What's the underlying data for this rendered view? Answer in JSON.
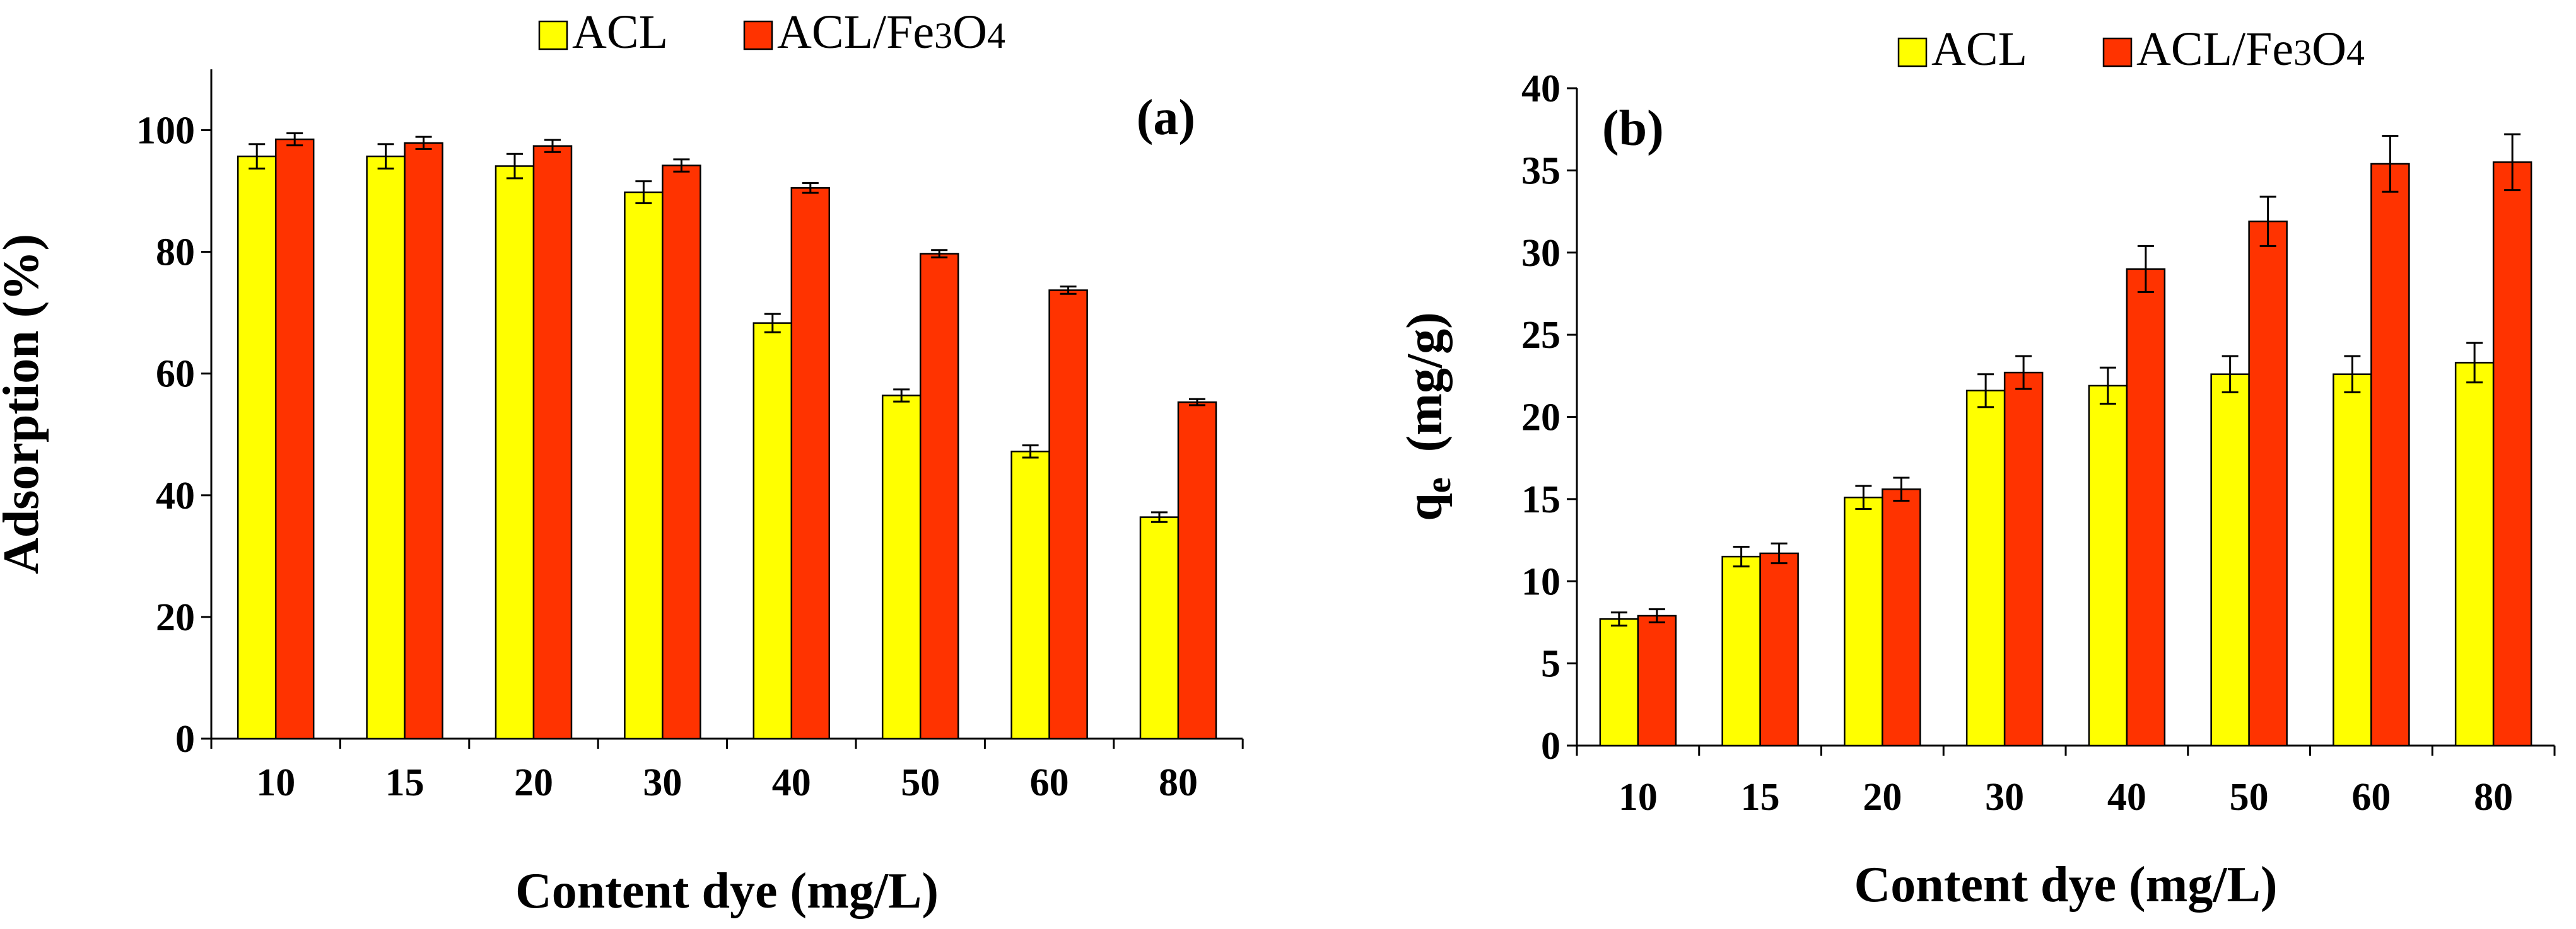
{
  "chart_data": [
    {
      "type": "bar",
      "panel_label": "(a)",
      "title": "",
      "xlabel": "Content dye (mg/L)",
      "ylabel": "Adsorption (%)",
      "ylim": [
        0,
        110
      ],
      "yticks": [
        0,
        20,
        40,
        60,
        80,
        100
      ],
      "grid": false,
      "legend_position": "top-center",
      "categories": [
        "10",
        "15",
        "20",
        "30",
        "40",
        "50",
        "60",
        "80"
      ],
      "series": [
        {
          "name": "ACL",
          "color": "#FFFF00",
          "values": [
            95.7,
            95.7,
            94.1,
            89.8,
            68.3,
            56.4,
            47.2,
            36.4
          ],
          "errors": [
            2.0,
            2.0,
            2.0,
            1.8,
            1.5,
            1.0,
            1.0,
            0.8
          ]
        },
        {
          "name": "ACL/Fe3O4",
          "color": "#FF3300",
          "values": [
            98.5,
            97.9,
            97.4,
            94.2,
            90.5,
            79.7,
            73.7,
            55.3
          ],
          "errors": [
            1.0,
            1.0,
            1.0,
            1.0,
            0.8,
            0.6,
            0.6,
            0.5
          ]
        }
      ]
    },
    {
      "type": "bar",
      "panel_label": "(b)",
      "title": "",
      "xlabel": "Content dye (mg/L)",
      "ylabel_main": "q",
      "ylabel_sub": "e",
      "ylabel_units": "(mg/g)",
      "ylim": [
        0,
        40
      ],
      "yticks": [
        0,
        5,
        10,
        15,
        20,
        25,
        30,
        35,
        40
      ],
      "grid": false,
      "legend_position": "top-center",
      "categories": [
        "10",
        "15",
        "20",
        "30",
        "40",
        "50",
        "60",
        "80"
      ],
      "series": [
        {
          "name": "ACL",
          "color": "#FFFF00",
          "values": [
            7.7,
            11.5,
            15.1,
            21.6,
            21.9,
            22.6,
            22.6,
            23.3
          ],
          "errors": [
            0.4,
            0.6,
            0.7,
            1.0,
            1.1,
            1.1,
            1.1,
            1.2
          ]
        },
        {
          "name": "ACL/Fe3O4",
          "color": "#FF3300",
          "values": [
            7.9,
            11.7,
            15.6,
            22.7,
            29.0,
            31.9,
            35.4,
            35.5
          ],
          "errors": [
            0.4,
            0.6,
            0.7,
            1.0,
            1.4,
            1.5,
            1.7,
            1.7
          ]
        }
      ]
    }
  ]
}
